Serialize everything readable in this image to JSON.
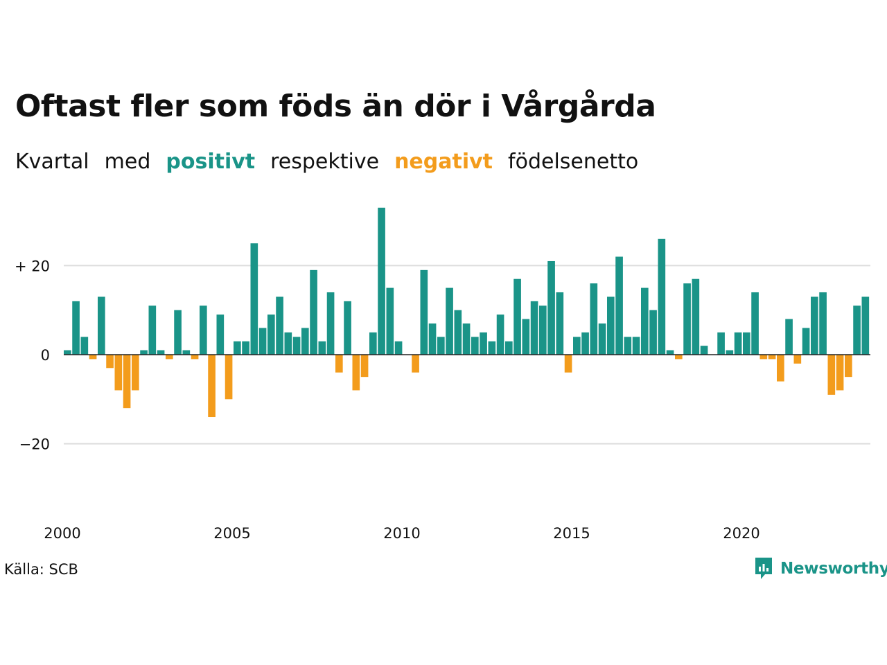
{
  "title": "Oftast fler som föds än dör i Vårgårda",
  "subtitle": {
    "w1": "Kvartal",
    "w2": "med",
    "w3": "positivt",
    "w4": "respektive",
    "w5": "negativt",
    "w6": "födelsenetto"
  },
  "source": "Källa: SCB",
  "brand": "Newsworthy",
  "colors": {
    "positive": "#1a9488",
    "negative": "#f39c1c",
    "grid": "#dddddd",
    "zero_line": "#222222"
  },
  "chart_data": {
    "type": "bar",
    "title": "Oftast fler som föds än dör i Vårgårda",
    "xlabel": "",
    "ylabel": "",
    "x_start": 2000.0,
    "period": "quarter",
    "x_ticks": [
      "2000",
      "2005",
      "2010",
      "2015",
      "2020"
    ],
    "y_ticks": [
      {
        "value": 20,
        "label": "+ 20"
      },
      {
        "value": 0,
        "label": "0"
      },
      {
        "value": -20,
        "label": "−20"
      }
    ],
    "ylim": [
      -35,
      33
    ],
    "grid": true,
    "values": [
      1,
      12,
      4,
      -1,
      13,
      -3,
      -8,
      -12,
      -8,
      1,
      11,
      1,
      -1,
      10,
      1,
      -1,
      11,
      -14,
      9,
      -10,
      3,
      3,
      25,
      6,
      9,
      13,
      5,
      4,
      6,
      19,
      3,
      14,
      -4,
      12,
      -8,
      -5,
      5,
      33,
      15,
      3,
      0,
      -4,
      19,
      7,
      4,
      15,
      10,
      7,
      4,
      5,
      3,
      9,
      3,
      17,
      8,
      12,
      11,
      21,
      14,
      -4,
      4,
      5,
      16,
      7,
      13,
      22,
      4,
      4,
      15,
      10,
      26,
      1,
      -1,
      16,
      17,
      2,
      0,
      5,
      1,
      5,
      5,
      14,
      -1,
      -1,
      -6,
      8,
      -2,
      6,
      13,
      14,
      -9,
      -8,
      -5,
      11,
      13
    ]
  }
}
